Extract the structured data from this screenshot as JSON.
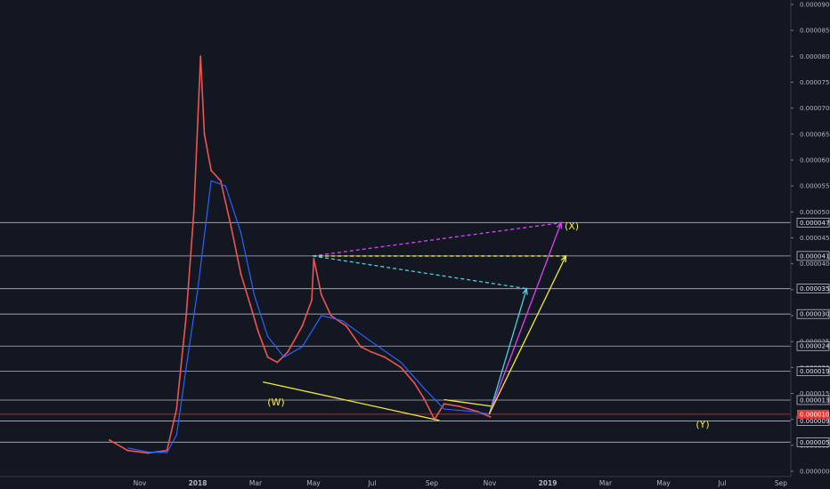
{
  "chart_data": {
    "type": "line",
    "title": "",
    "xlabel": "",
    "ylabel": "",
    "ylim": [
      0,
      9e-05
    ],
    "x_tick_labels": [
      "Nov",
      "2018",
      "Mar",
      "May",
      "Jul",
      "Sep",
      "Nov",
      "2019",
      "Mar",
      "May",
      "Jul",
      "Sep"
    ],
    "y_ticks": [
      "0.00009000",
      "0.00008500",
      "0.00008000",
      "0.00007500",
      "0.00007000",
      "0.00006500",
      "0.00006000",
      "0.00005500",
      "0.00005000",
      "0.00004500",
      "0.00004000",
      "0.00003500",
      "0.00003000",
      "0.00002500",
      "0.00002000",
      "0.00001500",
      "0.00001000",
      "0.00000500",
      "0.00000000"
    ],
    "horizontal_levels": [
      "0.00004795",
      "0.00004151",
      "0.00003520",
      "0.00003031",
      "0.00002413",
      "0.00001926",
      "0.00001372",
      "0.00000970",
      "0.00000560"
    ],
    "current_price": "0.00001099",
    "series": [
      {
        "kind": "price",
        "color": "#ef5350",
        "x": [
          "2017-10-01",
          "2017-10-20",
          "2017-11-10",
          "2017-11-30",
          "2017-12-10",
          "2017-12-20",
          "2017-12-28",
          "2018-01-04",
          "2018-01-08",
          "2018-01-15",
          "2018-01-25",
          "2018-02-05",
          "2018-02-15",
          "2018-02-25",
          "2018-03-05",
          "2018-03-15",
          "2018-03-25",
          "2018-04-05",
          "2018-04-20",
          "2018-04-30",
          "2018-05-02",
          "2018-05-10",
          "2018-05-20",
          "2018-06-05",
          "2018-06-20",
          "2018-07-01",
          "2018-07-15",
          "2018-08-01",
          "2018-08-15",
          "2018-08-25",
          "2018-09-05",
          "2018-09-15",
          "2018-10-01",
          "2018-10-20",
          "2018-11-02"
        ],
        "values": [
          6e-06,
          4e-06,
          3.5e-06,
          4e-06,
          1.2e-05,
          3e-05,
          5e-05,
          8e-05,
          6.5e-05,
          5.8e-05,
          5.6e-05,
          4.7e-05,
          3.8e-05,
          3.2e-05,
          2.7e-05,
          2.2e-05,
          2.1e-05,
          2.3e-05,
          2.8e-05,
          3.3e-05,
          4.1e-05,
          3.4e-05,
          3e-05,
          2.8e-05,
          2.4e-05,
          2.3e-05,
          2.2e-05,
          2e-05,
          1.7e-05,
          1.4e-05,
          1e-05,
          1.3e-05,
          1.25e-05,
          1.15e-05,
          1.05e-05
        ]
      },
      {
        "kind": "moving_average",
        "color": "#2962ff",
        "x": [
          "2017-10-20",
          "2017-11-10",
          "2017-11-30",
          "2017-12-10",
          "2017-12-20",
          "2018-01-01",
          "2018-01-15",
          "2018-01-30",
          "2018-02-15",
          "2018-03-01",
          "2018-03-15",
          "2018-04-01",
          "2018-04-20",
          "2018-05-10",
          "2018-06-01",
          "2018-07-01",
          "2018-08-01",
          "2018-08-25",
          "2018-09-15",
          "2018-10-15",
          "2018-11-02"
        ],
        "values": [
          4.5e-06,
          3.7e-06,
          3.6e-06,
          7e-06,
          2e-05,
          3.5e-05,
          5.6e-05,
          5.5e-05,
          4.6e-05,
          3.4e-05,
          2.6e-05,
          2.2e-05,
          2.4e-05,
          3e-05,
          2.9e-05,
          2.5e-05,
          2.1e-05,
          1.6e-05,
          1.2e-05,
          1.15e-05,
          1.1e-05
        ]
      }
    ],
    "annotations": {
      "wave_labels": [
        "(W)",
        "(X)",
        "(Y)"
      ],
      "trendline_lower": [
        {
          "x": "2018-03-10",
          "y": 1.72e-05
        },
        {
          "x": "2018-09-10",
          "y": 9.8e-06
        }
      ],
      "trendline_upper": [
        {
          "x": "2018-09-15",
          "y": 1.38e-05
        },
        {
          "x": "2018-11-05",
          "y": 1.25e-05
        }
      ],
      "projections": [
        {
          "color": "#e040fb",
          "style": "dashed",
          "from": {
            "x": "2018-05-01",
            "y": 4.15e-05
          },
          "to": {
            "x": "2019-01-15",
            "y": 4.79e-05
          }
        },
        {
          "color": "#f5e93b",
          "style": "dashed",
          "from": {
            "x": "2018-05-01",
            "y": 4.15e-05
          },
          "to": {
            "x": "2019-01-20",
            "y": 4.15e-05
          }
        },
        {
          "color": "#4dd0e1",
          "style": "dashed",
          "from": {
            "x": "2018-05-01",
            "y": 4.15e-05
          },
          "to": {
            "x": "2018-12-10",
            "y": 3.52e-05
          }
        },
        {
          "color": "#4dd0e1",
          "style": "arrow",
          "from": {
            "x": "2018-11-01",
            "y": 1.1e-05
          },
          "to": {
            "x": "2018-12-10",
            "y": 3.52e-05
          }
        },
        {
          "color": "#e040fb",
          "style": "arrow",
          "from": {
            "x": "2018-11-01",
            "y": 1.1e-05
          },
          "to": {
            "x": "2019-01-15",
            "y": 4.79e-05
          }
        },
        {
          "color": "#f5e93b",
          "style": "arrow",
          "from": {
            "x": "2018-11-01",
            "y": 1.1e-05
          },
          "to": {
            "x": "2019-01-20",
            "y": 4.15e-05
          }
        }
      ]
    },
    "grid": false,
    "colors": {
      "background": "#131722",
      "text": "#b2b5be",
      "level_line": "#d1d4dc",
      "current_price_tag": "#e53935",
      "current_price_line": "#e53935",
      "wave_label": "#f5e93b"
    }
  }
}
